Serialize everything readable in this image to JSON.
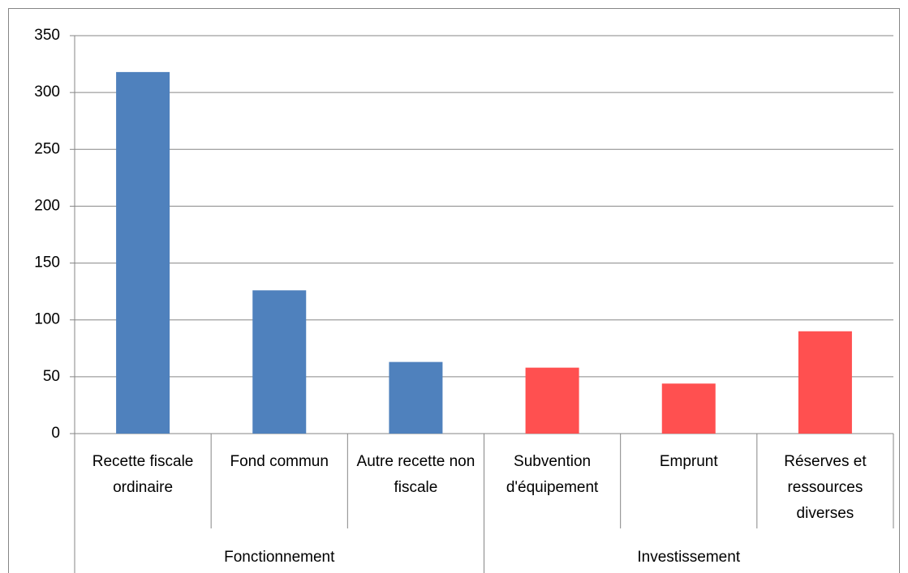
{
  "chart_data": {
    "type": "bar",
    "groups": [
      {
        "label": "Fonctionnement",
        "color": "#4f81bd",
        "categories": [
          "Recette fiscale ordinaire",
          "Fond commun",
          "Autre recette non fiscale"
        ],
        "values": [
          318,
          126,
          63
        ]
      },
      {
        "label": "Investissement",
        "color": "#ff5050",
        "categories": [
          "Subvention d'équipement",
          "Emprunt",
          "Réserves et ressources diverses"
        ],
        "values": [
          58,
          44,
          90
        ]
      }
    ],
    "ylim": [
      0,
      350
    ],
    "yticks": [
      0,
      50,
      100,
      150,
      200,
      250,
      300,
      350
    ],
    "grid": true
  }
}
